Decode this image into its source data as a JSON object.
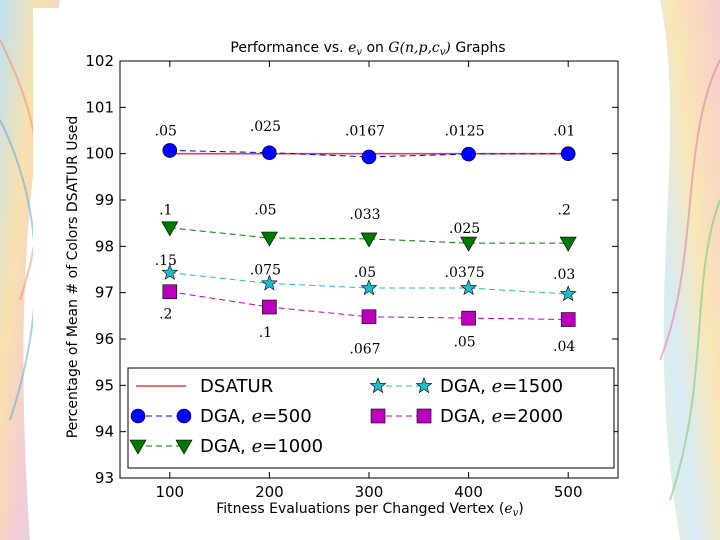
{
  "chart_data": {
    "type": "line",
    "title": "Performance vs. e_v on G(n,p,c_v) Graphs",
    "title_parts": {
      "pre": "Performance vs. ",
      "var": "e",
      "var_sub": "v",
      "mid": " on ",
      "graph_fn": "G",
      "graph_args": "(n,p,c",
      "graph_sub": "v",
      "graph_close": ")",
      "post": " Graphs"
    },
    "xlabel": "Fitness Evaluations per Changed Vertex",
    "xlabel_var": "e",
    "xlabel_var_sub": "v",
    "ylabel": "Percentage of Mean # of Colors DSATUR Used",
    "x": [
      100,
      200,
      300,
      400,
      500
    ],
    "xlim": [
      50,
      550
    ],
    "ylim": [
      93,
      102
    ],
    "xticks": [
      "100",
      "200",
      "300",
      "400",
      "500"
    ],
    "yticks": [
      "93",
      "94",
      "95",
      "96",
      "97",
      "98",
      "99",
      "100",
      "101",
      "102"
    ],
    "grid": false,
    "series": [
      {
        "name": "DSATUR",
        "legend_label": "DSATUR",
        "legend_e": "",
        "color": "#e8403c",
        "marker": "none",
        "dash": "solid",
        "values": [
          100,
          100,
          100,
          100,
          100
        ]
      },
      {
        "name": "DGA, e=500",
        "legend_label": "DGA, ",
        "legend_e": "500",
        "color": "#0000ff",
        "marker": "circle",
        "dash": "dashed",
        "values": [
          100.07,
          100.02,
          99.93,
          99.99,
          100.0
        ]
      },
      {
        "name": "DGA, e=1000",
        "legend_label": "DGA, ",
        "legend_e": "1000",
        "color": "#007700",
        "marker": "triangle",
        "dash": "dashed",
        "values": [
          98.4,
          98.18,
          98.16,
          98.07,
          98.07
        ]
      },
      {
        "name": "DGA, e=1500",
        "legend_label": "DGA, ",
        "legend_e": "1500",
        "color": "#22bbcc",
        "marker": "star",
        "dash": "dashed",
        "values": [
          97.43,
          97.2,
          97.1,
          97.1,
          96.97
        ]
      },
      {
        "name": "DGA, e=2000",
        "legend_label": "DGA, ",
        "legend_e": "2000",
        "color": "#bb00bb",
        "marker": "square",
        "dash": "dashed",
        "values": [
          97.02,
          96.69,
          96.48,
          96.45,
          96.42
        ]
      }
    ],
    "legend_position": "lower-center",
    "legend_e_symbol": "e",
    "legend_eq": "=",
    "annotations": [
      {
        "text": ".05",
        "x": 100,
        "y": 100.5
      },
      {
        "text": ".025",
        "x": 200,
        "y": 100.6
      },
      {
        "text": ".0167",
        "x": 300,
        "y": 100.5
      },
      {
        "text": ".0125",
        "x": 400,
        "y": 100.5
      },
      {
        "text": ".01",
        "x": 500,
        "y": 100.5
      },
      {
        "text": ".1",
        "x": 100,
        "y": 98.8
      },
      {
        "text": ".05",
        "x": 200,
        "y": 98.8
      },
      {
        "text": ".033",
        "x": 300,
        "y": 98.7
      },
      {
        "text": ".025",
        "x": 400,
        "y": 98.4
      },
      {
        "text": ".2",
        "x": 500,
        "y": 98.8
      },
      {
        "text": ".15",
        "x": 100,
        "y": 97.7
      },
      {
        "text": ".075",
        "x": 200,
        "y": 97.5
      },
      {
        "text": ".05",
        "x": 300,
        "y": 97.45
      },
      {
        "text": ".0375",
        "x": 400,
        "y": 97.45
      },
      {
        "text": ".03",
        "x": 500,
        "y": 97.4
      },
      {
        "text": ".2",
        "x": 100,
        "y": 96.55
      },
      {
        "text": ".1",
        "x": 200,
        "y": 96.15
      },
      {
        "text": ".067",
        "x": 300,
        "y": 95.8
      },
      {
        "text": ".05",
        "x": 400,
        "y": 95.95
      },
      {
        "text": ".04",
        "x": 500,
        "y": 95.85
      }
    ]
  }
}
